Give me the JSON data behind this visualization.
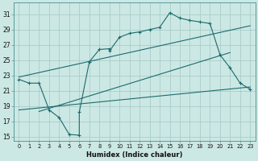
{
  "xlabel": "Humidex (Indice chaleur)",
  "bg_color": "#cce8e4",
  "grid_color": "#aacccc",
  "line_color": "#1a6b6b",
  "xlim": [
    -0.5,
    23.5
  ],
  "ylim": [
    14.5,
    32.5
  ],
  "xticks": [
    0,
    1,
    2,
    3,
    4,
    5,
    6,
    7,
    8,
    9,
    10,
    11,
    12,
    13,
    14,
    15,
    16,
    17,
    18,
    19,
    20,
    21,
    22,
    23
  ],
  "yticks": [
    15,
    17,
    19,
    21,
    23,
    25,
    27,
    29,
    31
  ],
  "line1_x": [
    0,
    1,
    2,
    3,
    4,
    5,
    6,
    6,
    7,
    8,
    9,
    9,
    10,
    11,
    12,
    13,
    14,
    15,
    16,
    17,
    18,
    19,
    20,
    21,
    22,
    23
  ],
  "line1_y": [
    22.5,
    22.0,
    22.0,
    18.5,
    17.5,
    15.3,
    15.2,
    18.2,
    24.8,
    26.4,
    26.5,
    26.2,
    28.0,
    28.5,
    28.7,
    29.0,
    29.3,
    31.2,
    30.5,
    30.2,
    30.0,
    29.8,
    25.7,
    24.0,
    22.0,
    21.2
  ],
  "line2_x": [
    0,
    23
  ],
  "line2_y": [
    22.8,
    29.5
  ],
  "line3_x": [
    0,
    23
  ],
  "line3_y": [
    18.5,
    21.5
  ],
  "line4_x": [
    2,
    21
  ],
  "line4_y": [
    18.3,
    26.0
  ]
}
